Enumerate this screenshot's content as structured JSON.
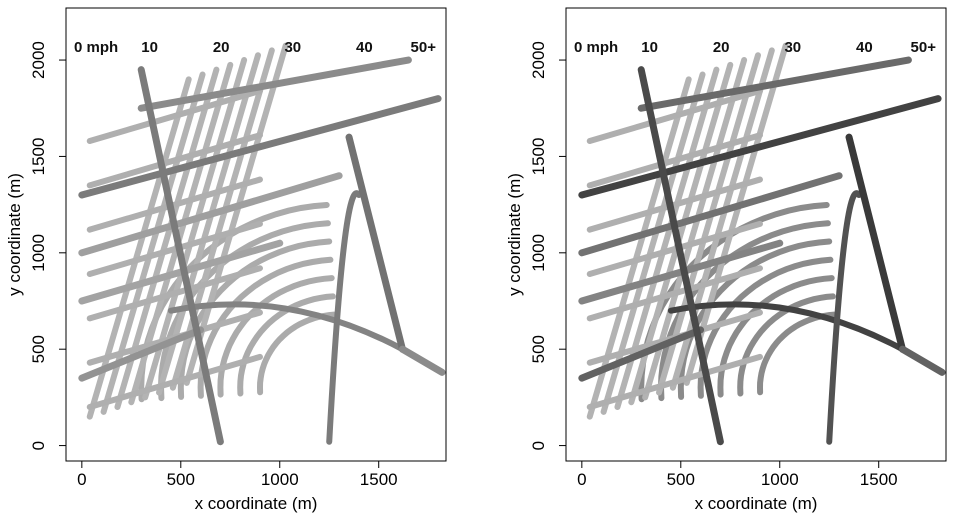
{
  "chart_data": [
    {
      "type": "map",
      "xlabel": "x coordinate (m)",
      "ylabel": "y coordinate (m)",
      "xlim": [
        -80,
        1840
      ],
      "ylim": [
        -80,
        2270
      ],
      "xticks": [
        0,
        500,
        1000,
        1500
      ],
      "yticks": [
        0,
        500,
        1000,
        1500,
        2000
      ],
      "grid": false,
      "colorbar": {
        "labels": [
          "0 mph",
          "10",
          "20",
          "30",
          "40",
          "50+"
        ],
        "values": [
          0,
          10,
          20,
          30,
          40,
          50
        ],
        "position": "top",
        "colors": [
          "#dcdcdc",
          "#111111"
        ]
      },
      "network": {
        "grid_lines": [
          {
            "x1": 0,
            "y1": 1300,
            "x2": 1800,
            "y2": 1800,
            "speed": 24
          },
          {
            "x1": 300,
            "y1": 1750,
            "x2": 1650,
            "y2": 2000,
            "speed": 20
          },
          {
            "x1": 0,
            "y1": 1000,
            "x2": 1300,
            "y2": 1400,
            "speed": 15
          },
          {
            "x1": 0,
            "y1": 750,
            "x2": 1000,
            "y2": 1050,
            "speed": 14
          },
          {
            "x1": 0,
            "y1": 350,
            "x2": 600,
            "y2": 600,
            "speed": 18
          },
          {
            "x1": 300,
            "y1": 1950,
            "x2": 700,
            "y2": 20,
            "speed": 24
          },
          {
            "x1": 1350,
            "y1": 1600,
            "x2": 1620,
            "y2": 500,
            "speed": 26
          },
          {
            "x1": 1620,
            "y1": 500,
            "x2": 1820,
            "y2": 380,
            "speed": 20
          }
        ],
        "arc_center": [
          1300,
          300
        ],
        "arc_radii": [
          400,
          500,
          600,
          700,
          800,
          900,
          1000
        ],
        "curves": [
          {
            "from": [
              450,
              700
            ],
            "to": [
              1620,
              500
            ],
            "speed": 22
          },
          {
            "from": [
              1250,
              20
            ],
            "to": [
              1400,
              1300
            ],
            "speed": 24
          }
        ]
      }
    },
    {
      "type": "map",
      "xlabel": "x coordinate (m)",
      "ylabel": "y coordinate (m)",
      "xlim": [
        -80,
        1840
      ],
      "ylim": [
        -80,
        2270
      ],
      "xticks": [
        0,
        500,
        1000,
        1500
      ],
      "yticks": [
        0,
        500,
        1000,
        1500,
        2000
      ],
      "grid": false,
      "colorbar": {
        "labels": [
          "0 mph",
          "10",
          "20",
          "30",
          "40",
          "50+"
        ],
        "values": [
          0,
          10,
          20,
          30,
          40,
          50
        ],
        "position": "top",
        "colors": [
          "#dcdcdc",
          "#111111"
        ]
      },
      "network": {
        "grid_lines": [
          {
            "x1": 0,
            "y1": 1300,
            "x2": 1800,
            "y2": 1800,
            "speed": 38
          },
          {
            "x1": 300,
            "y1": 1750,
            "x2": 1650,
            "y2": 2000,
            "speed": 28
          },
          {
            "x1": 0,
            "y1": 1000,
            "x2": 1300,
            "y2": 1400,
            "speed": 26
          },
          {
            "x1": 0,
            "y1": 750,
            "x2": 1000,
            "y2": 1050,
            "speed": 22
          },
          {
            "x1": 0,
            "y1": 350,
            "x2": 600,
            "y2": 600,
            "speed": 30
          },
          {
            "x1": 300,
            "y1": 1950,
            "x2": 700,
            "y2": 20,
            "speed": 36
          },
          {
            "x1": 1350,
            "y1": 1600,
            "x2": 1620,
            "y2": 500,
            "speed": 40
          },
          {
            "x1": 1620,
            "y1": 500,
            "x2": 1820,
            "y2": 380,
            "speed": 30
          }
        ],
        "arc_center": [
          1300,
          300
        ],
        "arc_radii": [
          400,
          500,
          600,
          700,
          800,
          900,
          1000
        ],
        "curves": [
          {
            "from": [
              450,
              700
            ],
            "to": [
              1620,
              500
            ],
            "speed": 38
          },
          {
            "from": [
              1250,
              20
            ],
            "to": [
              1400,
              1300
            ],
            "speed": 34
          }
        ]
      }
    }
  ]
}
